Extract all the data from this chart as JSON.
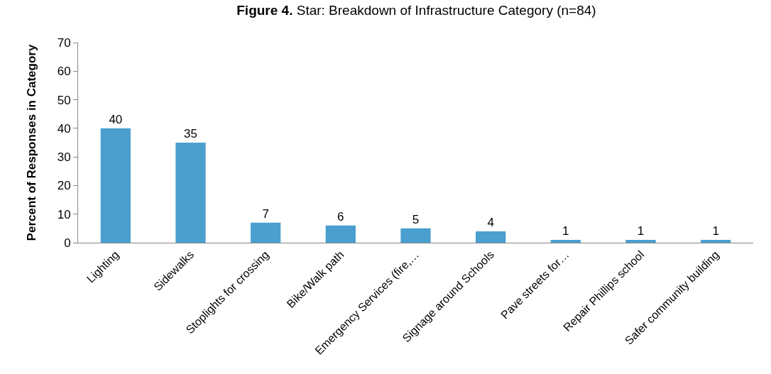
{
  "chart_data": {
    "type": "bar",
    "title": "Figure 4. Star: Breakdown of Infrastructure Category (n=84)",
    "ylabel": "Percent of Responses in Category",
    "categories": [
      "Lighting",
      "Sidewalks",
      "Stoplights for crossing",
      "Bike/Walk path",
      "Emergency Services (fire,…",
      "Signage around Schools",
      "Pave streets for…",
      "Repair Phillips school",
      "Safer community building"
    ],
    "values": [
      40,
      35,
      7,
      6,
      5,
      4,
      1,
      1,
      1
    ],
    "color": "#4a9fcf",
    "data_labels": true,
    "ylim": [
      0,
      70
    ],
    "yticks": [
      0,
      10,
      20,
      30,
      40,
      50,
      60,
      70
    ],
    "grid": false,
    "legend": false
  }
}
